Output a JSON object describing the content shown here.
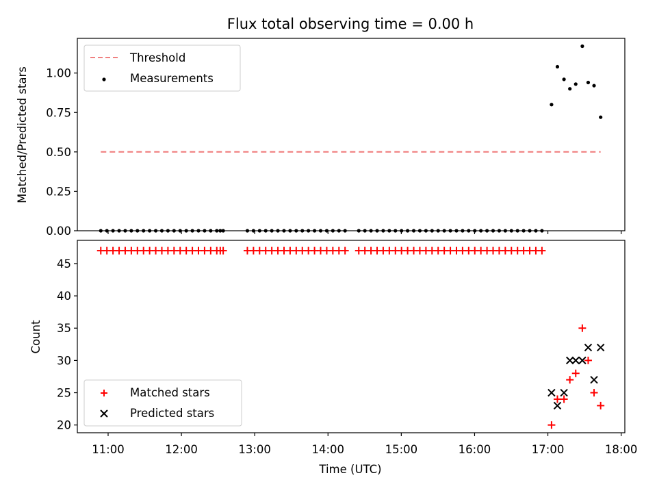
{
  "figure_title": "Flux total observing time = 0.00 h",
  "chart_data": [
    {
      "type": "scatter",
      "title": "Flux total observing time = 0.00 h",
      "xlabel": "",
      "ylabel": "Matched/Predicted stars",
      "xlim": [
        10.58,
        18.05
      ],
      "ylim": [
        0,
        1.22
      ],
      "yticks": [
        0.0,
        0.25,
        0.5,
        0.75,
        1.0
      ],
      "ytick_labels": [
        "0.00",
        "0.25",
        "0.50",
        "0.75",
        "1.00"
      ],
      "legend": "upper-left",
      "threshold": {
        "name": "Threshold",
        "value": 0.5,
        "x_range": [
          10.9,
          17.72
        ],
        "color": "#f08080",
        "style": "dashed"
      },
      "measurements": {
        "name": "Measurements",
        "color": "#000000",
        "zero_segments": [
          {
            "start": 10.9,
            "end": 12.5,
            "step": 0.0833
          },
          {
            "start": 12.53,
            "end": 12.57,
            "step": 0.04
          },
          {
            "start": 12.9,
            "end": 14.3,
            "step": 0.0833
          },
          {
            "start": 14.42,
            "end": 17.0,
            "step": 0.0833
          }
        ],
        "points": [
          {
            "x": 17.05,
            "y": 0.8
          },
          {
            "x": 17.13,
            "y": 1.04
          },
          {
            "x": 17.22,
            "y": 0.96
          },
          {
            "x": 17.3,
            "y": 0.9
          },
          {
            "x": 17.38,
            "y": 0.93
          },
          {
            "x": 17.47,
            "y": 1.17
          },
          {
            "x": 17.55,
            "y": 0.94
          },
          {
            "x": 17.63,
            "y": 0.92
          },
          {
            "x": 17.72,
            "y": 0.72
          }
        ]
      }
    },
    {
      "type": "scatter",
      "title": "",
      "xlabel": "Time (UTC)",
      "ylabel": "Count",
      "xlim": [
        10.58,
        18.05
      ],
      "ylim": [
        18.8,
        48.6
      ],
      "xticks": [
        11,
        12,
        13,
        14,
        15,
        16,
        17,
        18
      ],
      "xtick_labels": [
        "11:00",
        "12:00",
        "13:00",
        "14:00",
        "15:00",
        "16:00",
        "17:00",
        "18:00"
      ],
      "yticks": [
        20,
        25,
        30,
        35,
        40,
        45
      ],
      "ytick_labels": [
        "20",
        "25",
        "30",
        "35",
        "40",
        "45"
      ],
      "legend": "lower-left",
      "matched": {
        "name": "Matched stars",
        "color": "#ff0000",
        "constant_value": 47,
        "constant_segments": [
          {
            "start": 10.9,
            "end": 12.5,
            "step": 0.0833
          },
          {
            "start": 12.53,
            "end": 12.57,
            "step": 0.04
          },
          {
            "start": 12.9,
            "end": 14.3,
            "step": 0.0833
          },
          {
            "start": 14.42,
            "end": 17.0,
            "step": 0.0833
          }
        ],
        "points": [
          {
            "x": 17.05,
            "y": 20
          },
          {
            "x": 17.13,
            "y": 24
          },
          {
            "x": 17.22,
            "y": 24
          },
          {
            "x": 17.3,
            "y": 27
          },
          {
            "x": 17.38,
            "y": 28
          },
          {
            "x": 17.47,
            "y": 35
          },
          {
            "x": 17.55,
            "y": 30
          },
          {
            "x": 17.63,
            "y": 25
          },
          {
            "x": 17.72,
            "y": 23
          }
        ]
      },
      "predicted": {
        "name": "Predicted stars",
        "color": "#000000",
        "points": [
          {
            "x": 17.05,
            "y": 25
          },
          {
            "x": 17.13,
            "y": 23
          },
          {
            "x": 17.22,
            "y": 25
          },
          {
            "x": 17.3,
            "y": 30
          },
          {
            "x": 17.38,
            "y": 30
          },
          {
            "x": 17.47,
            "y": 30
          },
          {
            "x": 17.55,
            "y": 32
          },
          {
            "x": 17.63,
            "y": 27
          },
          {
            "x": 17.72,
            "y": 32
          }
        ]
      }
    }
  ]
}
